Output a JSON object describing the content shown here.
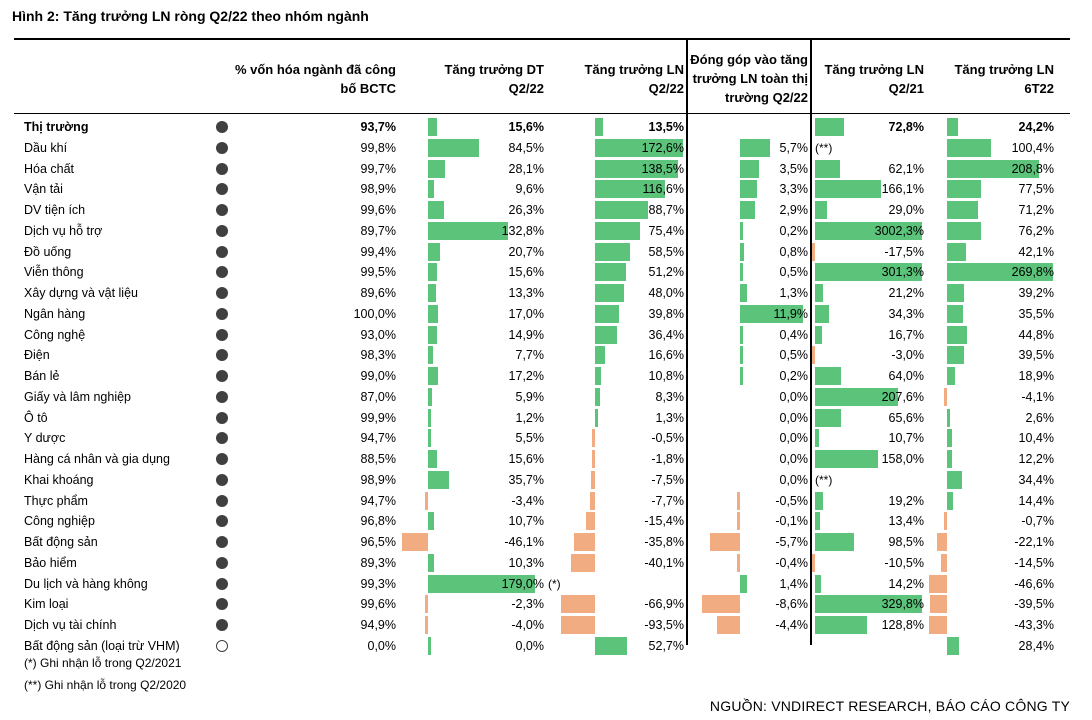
{
  "title": "Hình 2: Tăng trưởng LN ròng Q2/22 theo nhóm ngành",
  "headers": [
    {
      "line1": "% vốn hóa ngành đã công",
      "line2": "bố BCTC"
    },
    {
      "line1": "Tăng trưởng DT",
      "line2": "Q2/22"
    },
    {
      "line1": "Tăng trưởng LN",
      "line2": "Q2/22"
    },
    {
      "line1": "Đóng góp vào tăng",
      "line2": "trưởng LN toàn thị",
      "line3": "trường Q2/22"
    },
    {
      "line1": "Tăng trưởng LN",
      "line2": "Q2/21"
    },
    {
      "line1": "Tăng trưởng LN",
      "line2": "6T22"
    }
  ],
  "colors": {
    "positive": "#5bc37a",
    "negative": "#f2ac81",
    "dot": "#404040"
  },
  "rows": [
    {
      "name": "Thị trường",
      "bold": true,
      "dot": "filled",
      "cap": "93,7%",
      "dt": "15,6%",
      "dt_v": 15.6,
      "ln": "13,5%",
      "ln_v": 13.5,
      "contrib": "",
      "contrib_v": 0,
      "ln21": "72,8%",
      "ln21_v": 72.8,
      "ln6": "24,2%",
      "ln6_v": 24.2
    },
    {
      "name": "Dầu khí",
      "dot": "filled",
      "cap": "99,8%",
      "dt": "84,5%",
      "dt_v": 84.5,
      "ln": "172,6%",
      "ln_v": 172.6,
      "contrib": "5,7%",
      "contrib_v": 5.7,
      "ln21": "",
      "ln21_v": 0,
      "ln21_note": "(**)",
      "ln6": "100,4%",
      "ln6_v": 100.4
    },
    {
      "name": "Hóa chất",
      "dot": "filled",
      "cap": "99,7%",
      "dt": "28,1%",
      "dt_v": 28.1,
      "ln": "138,5%",
      "ln_v": 138.5,
      "contrib": "3,5%",
      "contrib_v": 3.5,
      "ln21": "62,1%",
      "ln21_v": 62.1,
      "ln6": "208,8%",
      "ln6_v": 208.8
    },
    {
      "name": "Vận tải",
      "dot": "filled",
      "cap": "98,9%",
      "dt": "9,6%",
      "dt_v": 9.6,
      "ln": "116,6%",
      "ln_v": 116.6,
      "contrib": "3,3%",
      "contrib_v": 3.3,
      "ln21": "166,1%",
      "ln21_v": 166.1,
      "ln6": "77,5%",
      "ln6_v": 77.5
    },
    {
      "name": "DV tiện ích",
      "dot": "filled",
      "cap": "99,6%",
      "dt": "26,3%",
      "dt_v": 26.3,
      "ln": "88,7%",
      "ln_v": 88.7,
      "contrib": "2,9%",
      "contrib_v": 2.9,
      "ln21": "29,0%",
      "ln21_v": 29.0,
      "ln6": "71,2%",
      "ln6_v": 71.2
    },
    {
      "name": "Dịch vụ hỗ trợ",
      "dot": "filled",
      "cap": "89,7%",
      "dt": "132,8%",
      "dt_v": 132.8,
      "ln": "75,4%",
      "ln_v": 75.4,
      "contrib": "0,2%",
      "contrib_v": 0.2,
      "ln21": "3002,3%",
      "ln21_v": 3002.3,
      "ln6": "76,2%",
      "ln6_v": 76.2
    },
    {
      "name": "Đồ uống",
      "dot": "filled",
      "cap": "99,4%",
      "dt": "20,7%",
      "dt_v": 20.7,
      "ln": "58,5%",
      "ln_v": 58.5,
      "contrib": "0,8%",
      "contrib_v": 0.8,
      "ln21": "-17,5%",
      "ln21_v": -17.5,
      "ln6": "42,1%",
      "ln6_v": 42.1
    },
    {
      "name": "Viễn thông",
      "dot": "filled",
      "cap": "99,5%",
      "dt": "15,6%",
      "dt_v": 15.6,
      "ln": "51,2%",
      "ln_v": 51.2,
      "contrib": "0,5%",
      "contrib_v": 0.5,
      "ln21": "301,3%",
      "ln21_v": 301.3,
      "ln6": "269,8%",
      "ln6_v": 269.8
    },
    {
      "name": "Xây dựng và vật liệu",
      "dot": "filled",
      "cap": "89,6%",
      "dt": "13,3%",
      "dt_v": 13.3,
      "ln": "48,0%",
      "ln_v": 48.0,
      "contrib": "1,3%",
      "contrib_v": 1.3,
      "ln21": "21,2%",
      "ln21_v": 21.2,
      "ln6": "39,2%",
      "ln6_v": 39.2
    },
    {
      "name": "Ngân hàng",
      "dot": "filled",
      "cap": "100,0%",
      "dt": "17,0%",
      "dt_v": 17.0,
      "ln": "39,8%",
      "ln_v": 39.8,
      "contrib": "11,9%",
      "contrib_v": 11.9,
      "ln21": "34,3%",
      "ln21_v": 34.3,
      "ln6": "35,5%",
      "ln6_v": 35.5
    },
    {
      "name": "Công nghệ",
      "dot": "filled",
      "cap": "93,0%",
      "dt": "14,9%",
      "dt_v": 14.9,
      "ln": "36,4%",
      "ln_v": 36.4,
      "contrib": "0,4%",
      "contrib_v": 0.4,
      "ln21": "16,7%",
      "ln21_v": 16.7,
      "ln6": "44,8%",
      "ln6_v": 44.8
    },
    {
      "name": "Điện",
      "dot": "filled",
      "cap": "98,3%",
      "dt": "7,7%",
      "dt_v": 7.7,
      "ln": "16,6%",
      "ln_v": 16.6,
      "contrib": "0,5%",
      "contrib_v": 0.5,
      "ln21": "-3,0%",
      "ln21_v": -3.0,
      "ln6": "39,5%",
      "ln6_v": 39.5
    },
    {
      "name": "Bán lẻ",
      "dot": "filled",
      "cap": "99,0%",
      "dt": "17,2%",
      "dt_v": 17.2,
      "ln": "10,8%",
      "ln_v": 10.8,
      "contrib": "0,2%",
      "contrib_v": 0.2,
      "ln21": "64,0%",
      "ln21_v": 64.0,
      "ln6": "18,9%",
      "ln6_v": 18.9
    },
    {
      "name": "Giấy và lâm nghiệp",
      "dot": "filled",
      "cap": "87,0%",
      "dt": "5,9%",
      "dt_v": 5.9,
      "ln": "8,3%",
      "ln_v": 8.3,
      "contrib": "0,0%",
      "contrib_v": 0.0,
      "ln21": "207,6%",
      "ln21_v": 207.6,
      "ln6": "-4,1%",
      "ln6_v": -4.1
    },
    {
      "name": "Ô tô",
      "dot": "filled",
      "cap": "99,9%",
      "dt": "1,2%",
      "dt_v": 1.2,
      "ln": "1,3%",
      "ln_v": 1.3,
      "contrib": "0,0%",
      "contrib_v": 0.0,
      "ln21": "65,6%",
      "ln21_v": 65.6,
      "ln6": "2,6%",
      "ln6_v": 2.6
    },
    {
      "name": "Y dược",
      "dot": "filled",
      "cap": "94,7%",
      "dt": "5,5%",
      "dt_v": 5.5,
      "ln": "-0,5%",
      "ln_v": -0.5,
      "contrib": "0,0%",
      "contrib_v": 0.0,
      "ln21": "10,7%",
      "ln21_v": 10.7,
      "ln6": "10,4%",
      "ln6_v": 10.4
    },
    {
      "name": "Hàng cá nhân và gia dụng",
      "dot": "filled",
      "cap": "88,5%",
      "dt": "15,6%",
      "dt_v": 15.6,
      "ln": "-1,8%",
      "ln_v": -1.8,
      "contrib": "0,0%",
      "contrib_v": 0.0,
      "ln21": "158,0%",
      "ln21_v": 158.0,
      "ln6": "12,2%",
      "ln6_v": 12.2
    },
    {
      "name": "Khai khoáng",
      "dot": "filled",
      "cap": "98,9%",
      "dt": "35,7%",
      "dt_v": 35.7,
      "ln": "-7,5%",
      "ln_v": -7.5,
      "contrib": "0,0%",
      "contrib_v": 0.0,
      "ln21": "",
      "ln21_v": 0,
      "ln21_note": "(**)",
      "ln6": "34,4%",
      "ln6_v": 34.4
    },
    {
      "name": "Thực phẩm",
      "dot": "filled",
      "cap": "94,7%",
      "dt": "-3,4%",
      "dt_v": -3.4,
      "ln": "-7,7%",
      "ln_v": -7.7,
      "contrib": "-0,5%",
      "contrib_v": -0.5,
      "ln21": "19,2%",
      "ln21_v": 19.2,
      "ln6": "14,4%",
      "ln6_v": 14.4
    },
    {
      "name": "Công nghiệp",
      "dot": "filled",
      "cap": "96,8%",
      "dt": "10,7%",
      "dt_v": 10.7,
      "ln": "-15,4%",
      "ln_v": -15.4,
      "contrib": "-0,1%",
      "contrib_v": -0.1,
      "ln21": "13,4%",
      "ln21_v": 13.4,
      "ln6": "-0,7%",
      "ln6_v": -0.7
    },
    {
      "name": "Bất động sản",
      "dot": "filled",
      "cap": "96,5%",
      "dt": "-46,1%",
      "dt_v": -46.1,
      "ln": "-35,8%",
      "ln_v": -35.8,
      "contrib": "-5,7%",
      "contrib_v": -5.7,
      "ln21": "98,5%",
      "ln21_v": 98.5,
      "ln6": "-22,1%",
      "ln6_v": -22.1
    },
    {
      "name": "Bảo hiểm",
      "dot": "filled",
      "cap": "89,3%",
      "dt": "10,3%",
      "dt_v": 10.3,
      "ln": "-40,1%",
      "ln_v": -40.1,
      "contrib": "-0,4%",
      "contrib_v": -0.4,
      "ln21": "-10,5%",
      "ln21_v": -10.5,
      "ln6": "-14,5%",
      "ln6_v": -14.5
    },
    {
      "name": "Du lịch và hàng không",
      "dot": "filled",
      "cap": "99,3%",
      "dt": "179,0%",
      "dt_v": 179.0,
      "dt_note": "(*)",
      "ln": "",
      "ln_v": 0,
      "contrib": "1,4%",
      "contrib_v": 1.4,
      "ln21": "14,2%",
      "ln21_v": 14.2,
      "ln6": "-46,6%",
      "ln6_v": -46.6
    },
    {
      "name": "Kim loại",
      "dot": "filled",
      "cap": "99,6%",
      "dt": "-2,3%",
      "dt_v": -2.3,
      "ln": "-66,9%",
      "ln_v": -66.9,
      "contrib": "-8,6%",
      "contrib_v": -8.6,
      "ln21": "329,8%",
      "ln21_v": 329.8,
      "ln6": "-39,5%",
      "ln6_v": -39.5
    },
    {
      "name": "Dịch vụ tài chính",
      "dot": "filled",
      "cap": "94,9%",
      "dt": "-4,0%",
      "dt_v": -4.0,
      "ln": "-93,5%",
      "ln_v": -93.5,
      "contrib": "-4,4%",
      "contrib_v": -4.4,
      "ln21": "128,8%",
      "ln21_v": 128.8,
      "ln6": "-43,3%",
      "ln6_v": -43.3
    },
    {
      "name": "Bất động sản (loại trừ VHM)",
      "dot": "empty",
      "cap": "0,0%",
      "dt": "0,0%",
      "dt_v": 0.0,
      "ln": "52,7%",
      "ln_v": 52.7,
      "contrib": "",
      "contrib_v": 0,
      "ln21": "",
      "ln21_v": 0,
      "ln6": "28,4%",
      "ln6_v": 28.4
    }
  ],
  "footnotes": [
    "(*) Ghi nhận lỗ trong Q2/2021",
    "(**) Ghi nhận lỗ trong Q2/2020"
  ],
  "source": "NGUỒN: VNDIRECT RESEARCH, BÁO CÁO CÔNG TY"
}
